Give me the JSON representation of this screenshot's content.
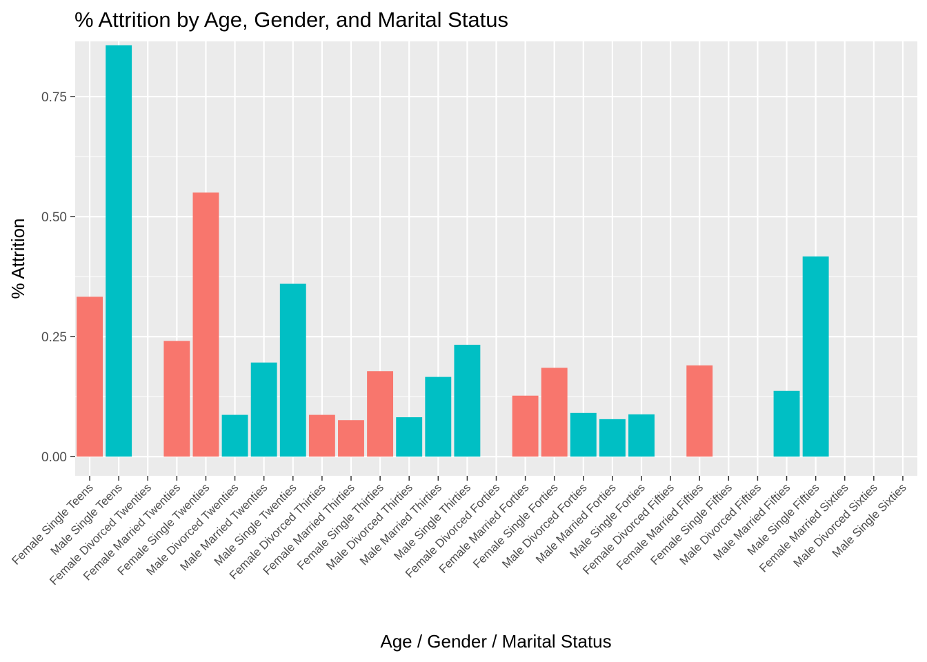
{
  "chart_data": {
    "type": "bar",
    "title": "% Attrition by Age, Gender, and Marital Status",
    "xlabel": "Age / Gender / Marital Status",
    "ylabel": "% Attrition",
    "ylim": [
      -0.04,
      0.865
    ],
    "yticks": [
      0,
      0.25,
      0.5,
      0.75
    ],
    "ytick_labels": [
      "0.00",
      "0.25",
      "0.50",
      "0.75"
    ],
    "grid": true,
    "legend": "none",
    "colors": {
      "Female": "#F8766D",
      "Male": "#00BFC4",
      "panel": "#EBEBEB",
      "grid": "#FFFFFF"
    },
    "categories": [
      "Female Single Teens",
      "Male Single Teens",
      "Female Divorced Twenties",
      "Female Married Twenties",
      "Female Single Twenties",
      "Male Divorced Twenties",
      "Male Married Twenties",
      "Male Single Twenties",
      "Female Divorced Thirties",
      "Female Married Thirties",
      "Female Single Thirties",
      "Male Divorced Thirties",
      "Male Married Thirties",
      "Male Single Thirties",
      "Female Divorced Forties",
      "Female Married Forties",
      "Female Single Forties",
      "Male Divorced Forties",
      "Male Married Forties",
      "Male Single Forties",
      "Female Divorced Fifties",
      "Female Married Fifties",
      "Female Single Fifties",
      "Male Divorced Fifties",
      "Male Married Fifties",
      "Male Single Fifties",
      "Female Married Sixties",
      "Male Divorced Sixties",
      "Male Single Sixties"
    ],
    "genders": [
      "Female",
      "Male",
      "Female",
      "Female",
      "Female",
      "Male",
      "Male",
      "Male",
      "Female",
      "Female",
      "Female",
      "Male",
      "Male",
      "Male",
      "Female",
      "Female",
      "Female",
      "Male",
      "Male",
      "Male",
      "Female",
      "Female",
      "Female",
      "Male",
      "Male",
      "Male",
      "Female",
      "Male",
      "Male"
    ],
    "values": [
      0.333,
      0.857,
      0.0,
      0.241,
      0.55,
      0.087,
      0.196,
      0.36,
      0.087,
      0.076,
      0.178,
      0.082,
      0.166,
      0.233,
      0.0,
      0.127,
      0.185,
      0.091,
      0.078,
      0.088,
      0.0,
      0.19,
      0.0,
      0.0,
      0.137,
      0.417,
      0.0,
      0.0,
      0.0
    ]
  }
}
